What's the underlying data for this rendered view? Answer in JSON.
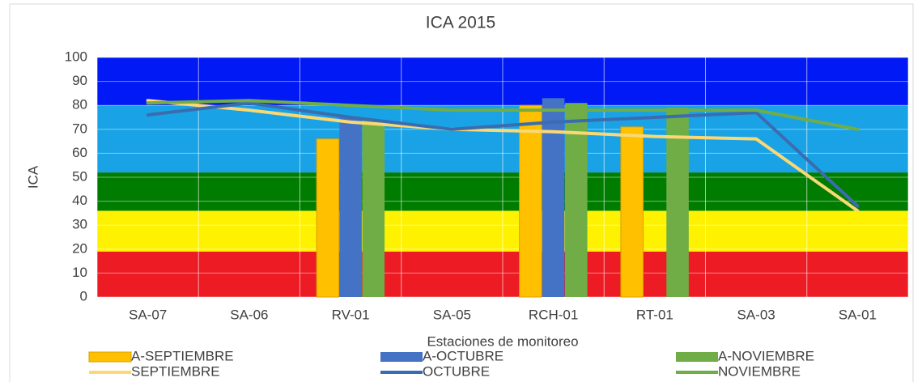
{
  "chart_data": {
    "type": "combo",
    "title": "ICA 2015",
    "x_label": "Estaciones de monitoreo",
    "y_label": "ICA",
    "categories": [
      "SA-07",
      "SA-06",
      "RV-01",
      "SA-05",
      "RCH-01",
      "RT-01",
      "SA-03",
      "SA-01"
    ],
    "ylim": [
      0,
      100
    ],
    "yticks": [
      0,
      10,
      20,
      30,
      40,
      50,
      60,
      70,
      80,
      90,
      100
    ],
    "grid": true,
    "bands": [
      {
        "from": 0,
        "to": 19,
        "color": "#ed1c24"
      },
      {
        "from": 19,
        "to": 36,
        "color": "#fff200"
      },
      {
        "from": 36,
        "to": 52,
        "color": "#007d00"
      },
      {
        "from": 52,
        "to": 80,
        "color": "#19a3e6"
      },
      {
        "from": 80,
        "to": 100,
        "color": "#0019f5"
      }
    ],
    "series": [
      {
        "name": "A-SEPTIEMBRE",
        "kind": "bar",
        "color": "#ffc000",
        "values": [
          null,
          null,
          66,
          null,
          80,
          71,
          null,
          null
        ]
      },
      {
        "name": "A-OCTUBRE",
        "kind": "bar",
        "color": "#4472c4",
        "values": [
          null,
          null,
          75,
          null,
          83,
          null,
          null,
          null
        ]
      },
      {
        "name": "A-NOVIEMBRE",
        "kind": "bar",
        "color": "#70ad47",
        "values": [
          null,
          null,
          74,
          null,
          81,
          79,
          null,
          null
        ]
      },
      {
        "name": "SEPTIEMBRE",
        "kind": "line",
        "color": "#fbd874",
        "values": [
          82,
          78,
          73,
          70,
          69,
          67,
          66,
          36
        ]
      },
      {
        "name": "OCTUBRE",
        "kind": "line",
        "color": "#3a6db0",
        "values": [
          76,
          81,
          75,
          70,
          73,
          75,
          77,
          38
        ]
      },
      {
        "name": "NOVIEMBRE",
        "kind": "line",
        "color": "#70ad47",
        "values": [
          81,
          82,
          80,
          78,
          78,
          78,
          78,
          70
        ]
      }
    ]
  }
}
